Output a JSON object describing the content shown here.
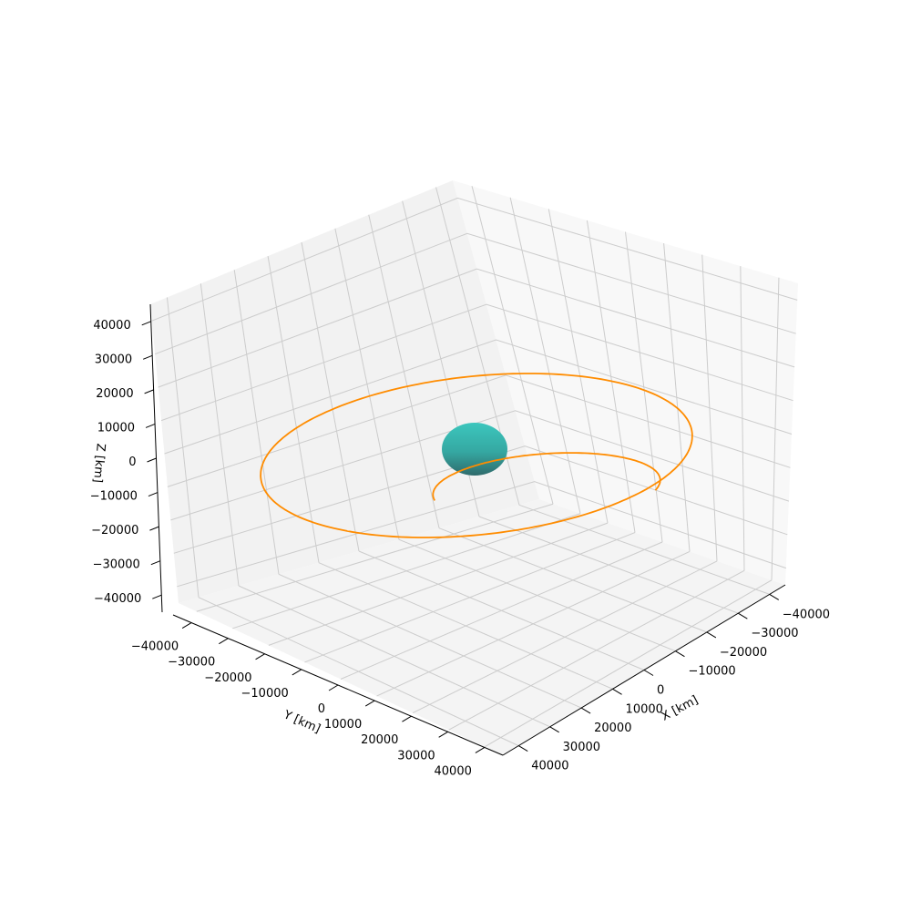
{
  "chart_data": {
    "type": "line3d",
    "title": "",
    "axes": {
      "x": {
        "label": "X [km]",
        "lim": [
          -45000,
          45000
        ],
        "ticks": [
          -40000,
          -30000,
          -20000,
          -10000,
          0,
          10000,
          20000,
          30000,
          40000
        ]
      },
      "y": {
        "label": "Y [km]",
        "lim": [
          -45000,
          45000
        ],
        "ticks": [
          -40000,
          -30000,
          -20000,
          -10000,
          0,
          10000,
          20000,
          30000,
          40000
        ]
      },
      "z": {
        "label": "Z [km]",
        "lim": [
          -45000,
          45000
        ],
        "ticks": [
          -40000,
          -30000,
          -20000,
          -10000,
          0,
          10000,
          20000,
          30000,
          40000
        ]
      }
    },
    "grid": true,
    "view": {
      "elevation_deg": 30,
      "azimuth_deg": 45
    },
    "body": {
      "type": "sphere",
      "center": [
        0,
        0,
        0
      ],
      "radius_km": 6378,
      "color": "#40c8c0"
    },
    "series": [
      {
        "type": "ellipse-orbit",
        "color": "#ff8c00",
        "semi_major_axis_km": 24400,
        "eccentricity": 0.73,
        "inclination_deg": 0,
        "focus": [
          0,
          0,
          0
        ],
        "periapsis_direction_deg": 45
      }
    ]
  },
  "colors": {
    "pane": "#f2f2f2",
    "grid": "#cccccc",
    "axis": "#000000"
  }
}
